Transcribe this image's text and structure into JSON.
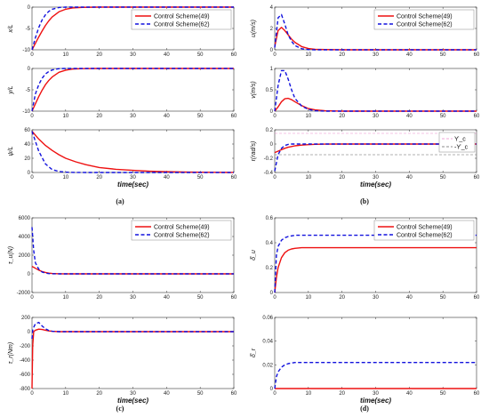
{
  "panel_labels": [
    "(a)",
    "(b)",
    "(c)",
    "(d)"
  ],
  "legend": {
    "series1": "Control Scheme(49)",
    "series2": "Control Scheme(62)"
  },
  "colors": {
    "series1": "#ee1111",
    "series2": "#1111dd",
    "axis": "#333333",
    "bound_upper": "#ee88cc",
    "bound_lower": "#666666"
  },
  "chart_data": [
    {
      "id": "x",
      "type": "line",
      "ylabel": "x/L",
      "xlabel": "",
      "xlim": [
        0,
        60
      ],
      "ylim": [
        -10,
        0
      ],
      "xticks": [
        "0",
        "10",
        "20",
        "30",
        "40",
        "50",
        "60"
      ],
      "yticks": [
        "-10",
        "-5",
        "0"
      ],
      "legend": "top-right",
      "x": [
        0,
        1,
        2,
        3,
        4,
        5,
        6,
        8,
        10,
        12,
        15,
        20,
        30,
        40,
        50,
        60
      ],
      "series": [
        {
          "name": "Control Scheme(49)",
          "values": [
            -10,
            -8.5,
            -7,
            -5.6,
            -4.3,
            -3.2,
            -2.3,
            -1.1,
            -0.5,
            -0.2,
            -0.05,
            0,
            0,
            0,
            0,
            0
          ]
        },
        {
          "name": "Control Scheme(62)",
          "values": [
            -10,
            -7.2,
            -4.8,
            -3,
            -1.8,
            -1,
            -0.5,
            -0.1,
            0,
            0,
            0,
            0,
            0,
            0,
            0,
            0
          ]
        }
      ]
    },
    {
      "id": "y",
      "type": "line",
      "ylabel": "y/L",
      "xlabel": "",
      "xlim": [
        0,
        60
      ],
      "ylim": [
        -10,
        0
      ],
      "xticks": [
        "0",
        "10",
        "20",
        "30",
        "40",
        "50",
        "60"
      ],
      "yticks": [
        "-10",
        "-5",
        "0"
      ],
      "x": [
        0,
        1,
        2,
        3,
        4,
        5,
        6,
        8,
        10,
        12,
        15,
        20,
        30,
        40,
        50,
        60
      ],
      "series": [
        {
          "name": "Control Scheme(49)",
          "values": [
            -10,
            -8.3,
            -6.6,
            -5.1,
            -3.8,
            -2.8,
            -2,
            -0.9,
            -0.4,
            -0.15,
            -0.03,
            0,
            0,
            0,
            0,
            0
          ]
        },
        {
          "name": "Control Scheme(62)",
          "values": [
            -10,
            -6,
            -3.8,
            -2.3,
            -1.3,
            -0.7,
            -0.35,
            -0.05,
            0,
            0,
            0,
            0,
            0,
            0,
            0,
            0
          ]
        }
      ]
    },
    {
      "id": "psi",
      "type": "line",
      "ylabel": "ψ/L",
      "xlabel": "time(sec)",
      "xlim": [
        0,
        60
      ],
      "ylim": [
        0,
        60
      ],
      "xticks": [
        "0",
        "10",
        "20",
        "30",
        "40",
        "50",
        "60"
      ],
      "yticks": [
        "0",
        "20",
        "40",
        "60"
      ],
      "x": [
        0,
        2,
        4,
        6,
        8,
        10,
        13,
        16,
        20,
        25,
        30,
        35,
        40,
        45,
        50,
        55,
        60
      ],
      "series": [
        {
          "name": "Control Scheme(49)",
          "values": [
            58,
            47,
            38,
            31,
            25,
            20,
            15,
            11,
            7,
            4.5,
            3,
            1.8,
            1.1,
            0.7,
            0.4,
            0.2,
            0.1
          ]
        },
        {
          "name": "Control Scheme(62)",
          "values": [
            58,
            30,
            12,
            4,
            1.5,
            0.5,
            0.1,
            0,
            0,
            0,
            0,
            0,
            0,
            0,
            0,
            0,
            0
          ]
        }
      ]
    },
    {
      "id": "u",
      "type": "line",
      "ylabel": "u(m/s)",
      "xlabel": "",
      "xlim": [
        0,
        60
      ],
      "ylim": [
        0,
        4
      ],
      "xticks": [
        "0",
        "10",
        "20",
        "30",
        "40",
        "50",
        "60"
      ],
      "yticks": [
        "0",
        "2",
        "4"
      ],
      "legend": "top-right",
      "x": [
        0,
        1,
        2,
        3,
        4,
        5,
        6,
        8,
        10,
        12,
        15,
        20,
        30,
        40,
        50,
        60
      ],
      "series": [
        {
          "name": "Control Scheme(49)",
          "values": [
            0.3,
            1.8,
            2.1,
            1.8,
            1.4,
            1,
            0.7,
            0.3,
            0.12,
            0.05,
            0.02,
            0,
            0,
            0,
            0,
            0
          ]
        },
        {
          "name": "Control Scheme(62)",
          "values": [
            0.2,
            3,
            3.3,
            2.4,
            1.4,
            0.8,
            0.4,
            0.1,
            0.02,
            0,
            0,
            0,
            0,
            0,
            0,
            0
          ]
        }
      ]
    },
    {
      "id": "v",
      "type": "line",
      "ylabel": "v(m/s)",
      "xlabel": "",
      "xlim": [
        0,
        60
      ],
      "ylim": [
        0,
        1
      ],
      "xticks": [
        "0",
        "10",
        "20",
        "30",
        "40",
        "50",
        "60"
      ],
      "yticks": [
        "0",
        "0.5",
        "1"
      ],
      "x": [
        0,
        1,
        2,
        3,
        4,
        5,
        6,
        8,
        10,
        12,
        15,
        20,
        30,
        40,
        50,
        60
      ],
      "series": [
        {
          "name": "Control Scheme(49)",
          "values": [
            0,
            0.1,
            0.22,
            0.29,
            0.3,
            0.27,
            0.22,
            0.13,
            0.06,
            0.03,
            0.01,
            0,
            0,
            0,
            0,
            0
          ]
        },
        {
          "name": "Control Scheme(62)",
          "values": [
            0,
            0.6,
            0.95,
            0.95,
            0.75,
            0.5,
            0.3,
            0.12,
            0.04,
            0.01,
            0,
            0,
            0,
            0,
            0,
            0
          ]
        }
      ]
    },
    {
      "id": "r",
      "type": "line",
      "ylabel": "r(rad/s)",
      "xlabel": "time(sec)",
      "xlim": [
        0,
        60
      ],
      "ylim": [
        -0.4,
        0.2
      ],
      "xticks": [
        "0",
        "10",
        "20",
        "30",
        "40",
        "50",
        "60"
      ],
      "yticks": [
        "-0.4",
        "-0.2",
        "0",
        "0.2"
      ],
      "legend": "right",
      "bounds": [
        {
          "label": "ϒ_c",
          "value": 0.15
        },
        {
          "label": "-ϒ_c",
          "value": -0.15
        }
      ],
      "x": [
        0,
        1,
        2,
        3,
        4,
        5,
        6,
        8,
        10,
        12,
        15,
        20,
        30,
        40,
        50,
        60
      ],
      "series": [
        {
          "name": "Control Scheme(49)",
          "values": [
            -0.12,
            -0.1,
            -0.08,
            -0.06,
            -0.045,
            -0.035,
            -0.025,
            -0.015,
            -0.008,
            -0.004,
            -0.001,
            0,
            0,
            0,
            0,
            0
          ]
        },
        {
          "name": "Control Scheme(62)",
          "values": [
            -0.38,
            -0.15,
            -0.06,
            -0.02,
            -0.005,
            0,
            0,
            0,
            0,
            0,
            0,
            0,
            0,
            0,
            0,
            0
          ]
        }
      ]
    },
    {
      "id": "tau_u",
      "type": "line",
      "ylabel": "τ_u(N)",
      "xlabel": "",
      "xlim": [
        0,
        60
      ],
      "ylim": [
        -2000,
        6000
      ],
      "xticks": [
        "0",
        "10",
        "20",
        "30",
        "40",
        "50",
        "60"
      ],
      "yticks": [
        "-2000",
        "0",
        "2000",
        "4000",
        "6000"
      ],
      "legend": "top-right",
      "x": [
        0,
        0.5,
        1,
        2,
        3,
        4,
        5,
        6,
        8,
        10,
        15,
        20,
        30,
        40,
        50,
        60
      ],
      "series": [
        {
          "name": "Control Scheme(49)",
          "values": [
            800,
            700,
            600,
            400,
            250,
            150,
            80,
            40,
            10,
            0,
            0,
            0,
            0,
            0,
            0,
            0
          ]
        },
        {
          "name": "Control Scheme(62)",
          "values": [
            5000,
            2500,
            1200,
            500,
            200,
            80,
            30,
            10,
            0,
            0,
            0,
            0,
            0,
            0,
            0,
            0
          ]
        }
      ]
    },
    {
      "id": "tau_r",
      "type": "line",
      "ylabel": "τ_r(Nm)",
      "xlabel": "time(sec)",
      "xlim": [
        0,
        60
      ],
      "ylim": [
        -800,
        200
      ],
      "xticks": [
        "0",
        "10",
        "20",
        "30",
        "40",
        "50",
        "60"
      ],
      "yticks": [
        "-800",
        "-600",
        "-400",
        "-200",
        "0",
        "200"
      ],
      "x": [
        0,
        0.2,
        0.5,
        1,
        2,
        3,
        4,
        5,
        6,
        8,
        10,
        15,
        20,
        30,
        40,
        50,
        60
      ],
      "series": [
        {
          "name": "Control Scheme(49)",
          "values": [
            -800,
            -200,
            0,
            20,
            35,
            30,
            20,
            10,
            5,
            0,
            0,
            0,
            0,
            0,
            0,
            0,
            0
          ]
        },
        {
          "name": "Control Scheme(62)",
          "values": [
            -100,
            20,
            60,
            110,
            130,
            80,
            40,
            15,
            5,
            0,
            0,
            0,
            0,
            0,
            0,
            0,
            0
          ]
        }
      ]
    },
    {
      "id": "delta_u",
      "type": "line",
      "ylabel": "δ̂_u",
      "xlabel": "",
      "xlim": [
        0,
        60
      ],
      "ylim": [
        0,
        0.6
      ],
      "xticks": [
        "0",
        "10",
        "20",
        "30",
        "40",
        "50",
        "60"
      ],
      "yticks": [
        "0",
        "0.2",
        "0.4",
        "0.6"
      ],
      "legend": "top-right",
      "x": [
        0,
        0.5,
        1,
        2,
        3,
        4,
        5,
        6,
        8,
        10,
        15,
        20,
        30,
        40,
        50,
        60
      ],
      "series": [
        {
          "name": "Control Scheme(49)",
          "values": [
            0,
            0.12,
            0.2,
            0.28,
            0.32,
            0.34,
            0.35,
            0.355,
            0.36,
            0.36,
            0.36,
            0.36,
            0.36,
            0.36,
            0.36,
            0.36
          ]
        },
        {
          "name": "Control Scheme(62)",
          "values": [
            0,
            0.3,
            0.37,
            0.42,
            0.44,
            0.45,
            0.455,
            0.46,
            0.46,
            0.46,
            0.46,
            0.46,
            0.46,
            0.46,
            0.46,
            0.46
          ]
        }
      ]
    },
    {
      "id": "delta_r",
      "type": "line",
      "ylabel": "δ̂_r",
      "xlabel": "time(sec)",
      "xlim": [
        0,
        60
      ],
      "ylim": [
        0,
        0.06
      ],
      "xticks": [
        "0",
        "10",
        "20",
        "30",
        "40",
        "50",
        "60"
      ],
      "yticks": [
        "0",
        "0.02",
        "0.04",
        "0.06"
      ],
      "x": [
        0,
        0.5,
        1,
        2,
        3,
        4,
        5,
        6,
        8,
        10,
        15,
        20,
        30,
        40,
        50,
        60
      ],
      "series": [
        {
          "name": "Control Scheme(49)",
          "values": [
            0,
            0,
            0,
            0,
            0,
            0,
            0,
            0,
            0,
            0,
            0,
            0,
            0,
            0,
            0,
            0
          ]
        },
        {
          "name": "Control Scheme(62)",
          "values": [
            0,
            0.01,
            0.014,
            0.018,
            0.02,
            0.021,
            0.0215,
            0.022,
            0.022,
            0.022,
            0.022,
            0.022,
            0.022,
            0.022,
            0.022,
            0.022
          ]
        }
      ]
    }
  ]
}
